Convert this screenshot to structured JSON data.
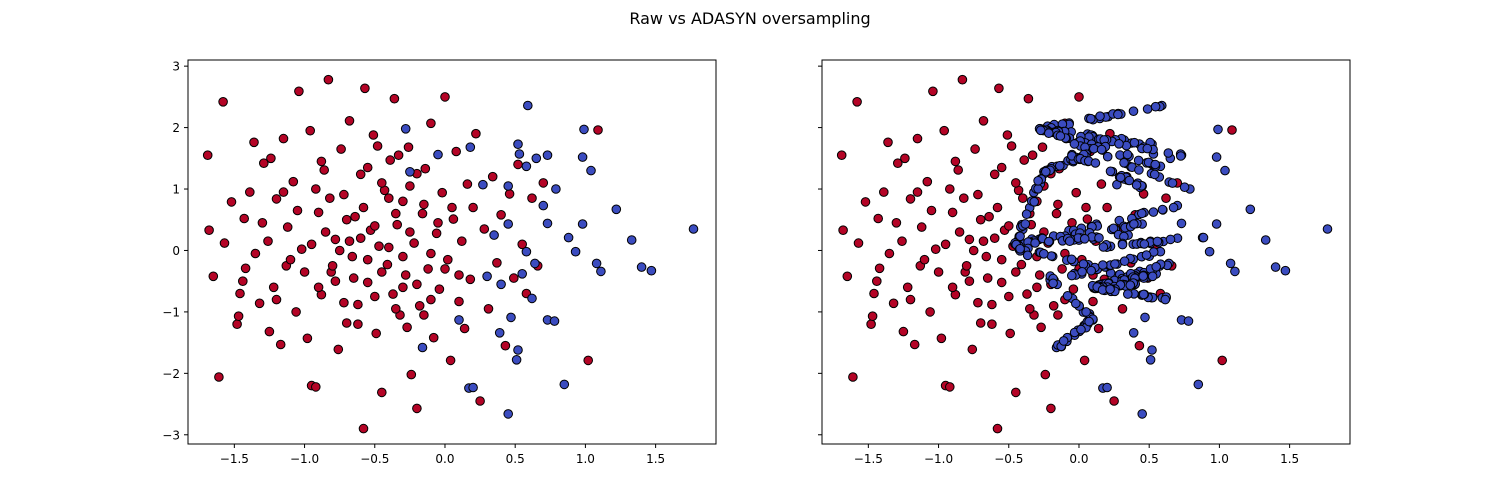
{
  "figure": {
    "title": "Raw vs ADASYN oversampling"
  },
  "colors": {
    "majority_class": "#b40426",
    "minority_class": "#3b4cc0",
    "marker_edge": "#000000",
    "background": "#ffffff"
  },
  "chart_data": [
    {
      "type": "scatter",
      "title": "",
      "xlabel": "",
      "ylabel": "",
      "xlim": [
        -1.83,
        1.93
      ],
      "ylim": [
        -3.15,
        3.1
      ],
      "xticks": [
        -1.5,
        -1.0,
        -0.5,
        0.0,
        0.5,
        1.0,
        1.5
      ],
      "xtick_labels": [
        "−1.5",
        "−1.0",
        "−0.5",
        "0.0",
        "0.5",
        "1.0",
        "1.5"
      ],
      "yticks": [
        -3,
        -2,
        -1,
        0,
        1,
        2,
        3
      ],
      "ytick_labels": [
        "−3",
        "−2",
        "−1",
        "0",
        "1",
        "2",
        "3"
      ],
      "grid": false,
      "legend": "none",
      "series": [
        {
          "color": "#b40426",
          "points": [
            [
              -1.69,
              1.55
            ],
            [
              -1.58,
              2.42
            ],
            [
              -1.61,
              -2.06
            ],
            [
              -1.65,
              -0.42
            ],
            [
              -1.68,
              0.33
            ],
            [
              -1.57,
              0.12
            ],
            [
              -1.52,
              0.79
            ],
            [
              -1.48,
              -1.2
            ],
            [
              -1.47,
              -1.07
            ],
            [
              -1.46,
              -0.7
            ],
            [
              -1.44,
              -0.5
            ],
            [
              -1.43,
              0.52
            ],
            [
              -1.42,
              -0.29
            ],
            [
              -1.39,
              0.95
            ],
            [
              -1.36,
              1.76
            ],
            [
              -1.35,
              -0.05
            ],
            [
              -1.32,
              -0.86
            ],
            [
              -1.3,
              0.45
            ],
            [
              -1.29,
              1.42
            ],
            [
              -1.26,
              0.15
            ],
            [
              -1.25,
              -1.32
            ],
            [
              -1.24,
              1.5
            ],
            [
              -1.22,
              -0.6
            ],
            [
              -1.2,
              0.84
            ],
            [
              -1.17,
              -1.53
            ],
            [
              -1.15,
              1.82
            ],
            [
              -1.13,
              -0.25
            ],
            [
              -1.12,
              0.38
            ],
            [
              -1.08,
              1.12
            ],
            [
              -1.06,
              -1.0
            ],
            [
              -1.04,
              2.59
            ],
            [
              -1.02,
              0.02
            ],
            [
              -0.98,
              -1.43
            ],
            [
              -0.96,
              1.95
            ],
            [
              -0.95,
              -2.2
            ],
            [
              -0.92,
              -2.22
            ],
            [
              -0.9,
              0.62
            ],
            [
              -0.88,
              -0.72
            ],
            [
              -0.86,
              1.31
            ],
            [
              -0.83,
              2.78
            ],
            [
              -0.81,
              -0.35
            ],
            [
              -0.78,
              0.18
            ],
            [
              -0.76,
              -1.61
            ],
            [
              -0.74,
              1.65
            ],
            [
              -0.72,
              0.91
            ],
            [
              -0.7,
              -1.18
            ],
            [
              -0.68,
              2.11
            ],
            [
              -0.66,
              -0.1
            ],
            [
              -0.64,
              0.55
            ],
            [
              -0.62,
              -0.88
            ],
            [
              -0.6,
              1.24
            ],
            [
              -0.58,
              -2.9
            ],
            [
              -0.57,
              2.64
            ],
            [
              -0.55,
              -0.52
            ],
            [
              -0.53,
              0.33
            ],
            [
              -0.51,
              1.88
            ],
            [
              -0.49,
              -1.35
            ],
            [
              -0.47,
              0.07
            ],
            [
              -0.45,
              -2.31
            ],
            [
              -0.43,
              0.98
            ],
            [
              -0.41,
              -0.23
            ],
            [
              -0.39,
              1.47
            ],
            [
              -0.37,
              -0.71
            ],
            [
              -0.36,
              2.47
            ],
            [
              -0.34,
              0.42
            ],
            [
              -0.32,
              -1.05
            ],
            [
              -0.3,
              0.8
            ],
            [
              -0.28,
              -0.4
            ],
            [
              -0.26,
              1.68
            ],
            [
              -0.24,
              -2.02
            ],
            [
              -0.22,
              0.12
            ],
            [
              -0.2,
              -2.57
            ],
            [
              -0.18,
              -0.9
            ],
            [
              -0.16,
              0.6
            ],
            [
              -0.14,
              1.33
            ],
            [
              -0.12,
              -0.3
            ],
            [
              -0.1,
              2.07
            ],
            [
              -0.08,
              -1.42
            ],
            [
              -0.06,
              0.28
            ],
            [
              -0.04,
              -0.63
            ],
            [
              -0.02,
              0.94
            ],
            [
              0.0,
              2.5
            ],
            [
              0.02,
              -0.15
            ],
            [
              0.04,
              -1.79
            ],
            [
              0.06,
              0.51
            ],
            [
              0.08,
              1.61
            ],
            [
              0.1,
              -0.83
            ],
            [
              0.12,
              0.15
            ],
            [
              0.14,
              -1.27
            ],
            [
              0.16,
              1.08
            ],
            [
              0.18,
              -0.47
            ],
            [
              0.2,
              0.7
            ],
            [
              0.22,
              1.9
            ],
            [
              0.25,
              -2.45
            ],
            [
              0.28,
              0.35
            ],
            [
              0.31,
              -0.95
            ],
            [
              0.34,
              1.2
            ],
            [
              0.37,
              -0.2
            ],
            [
              0.4,
              0.58
            ],
            [
              0.43,
              -1.55
            ],
            [
              0.46,
              0.92
            ],
            [
              0.49,
              -0.45
            ],
            [
              0.52,
              1.4
            ],
            [
              0.55,
              0.1
            ],
            [
              0.58,
              -0.7
            ],
            [
              0.62,
              0.85
            ],
            [
              0.66,
              -0.25
            ],
            [
              0.7,
              1.1
            ],
            [
              1.02,
              -1.79
            ],
            [
              1.09,
              1.96
            ],
            [
              -0.6,
              0.2
            ],
            [
              -0.55,
              -0.15
            ],
            [
              -0.5,
              0.4
            ],
            [
              -0.45,
              -0.35
            ],
            [
              -0.4,
              0.05
            ],
            [
              -0.35,
              0.6
            ],
            [
              -0.3,
              -0.1
            ],
            [
              -0.25,
              0.3
            ],
            [
              -0.2,
              -0.55
            ],
            [
              -0.15,
              0.75
            ],
            [
              -0.1,
              -0.05
            ],
            [
              -0.05,
              0.45
            ],
            [
              0.0,
              -0.3
            ],
            [
              -0.65,
              -0.45
            ],
            [
              -0.7,
              0.5
            ],
            [
              -0.75,
              0.0
            ],
            [
              -0.8,
              -0.25
            ],
            [
              -0.85,
              0.3
            ],
            [
              -0.9,
              -0.6
            ],
            [
              -0.95,
              0.1
            ],
            [
              -1.0,
              -0.35
            ],
            [
              -1.05,
              0.65
            ],
            [
              -1.1,
              -0.15
            ],
            [
              -0.45,
              1.1
            ],
            [
              -0.35,
              -0.95
            ],
            [
              -0.25,
              1.05
            ],
            [
              -0.15,
              -1.05
            ],
            [
              -0.55,
              1.35
            ],
            [
              -0.62,
              -1.2
            ],
            [
              -0.72,
              -0.85
            ],
            [
              -0.82,
              0.85
            ],
            [
              -0.92,
              1.0
            ],
            [
              -0.5,
              -0.75
            ],
            [
              -0.4,
              0.85
            ],
            [
              -0.3,
              -0.6
            ],
            [
              -0.2,
              1.25
            ],
            [
              -0.1,
              -0.8
            ],
            [
              0.05,
              0.7
            ],
            [
              0.1,
              -0.4
            ],
            [
              -0.58,
              0.7
            ],
            [
              -0.68,
              0.15
            ],
            [
              -0.78,
              -0.5
            ],
            [
              -0.88,
              1.45
            ],
            [
              -1.15,
              0.95
            ],
            [
              -1.2,
              -0.8
            ],
            [
              -0.33,
              1.55
            ],
            [
              -0.27,
              -1.25
            ],
            [
              -0.48,
              1.7
            ]
          ]
        },
        {
          "color": "#3b4cc0",
          "points": [
            [
              0.59,
              2.36
            ],
            [
              0.99,
              1.97
            ],
            [
              0.98,
              1.52
            ],
            [
              1.04,
              1.3
            ],
            [
              0.52,
              1.73
            ],
            [
              0.73,
              1.55
            ],
            [
              0.58,
              1.37
            ],
            [
              0.79,
              1.0
            ],
            [
              0.7,
              0.73
            ],
            [
              1.22,
              0.67
            ],
            [
              0.98,
              0.43
            ],
            [
              0.73,
              0.44
            ],
            [
              0.45,
              0.43
            ],
            [
              0.88,
              0.21
            ],
            [
              1.33,
              0.17
            ],
            [
              1.77,
              0.35
            ],
            [
              0.93,
              -0.02
            ],
            [
              1.08,
              -0.21
            ],
            [
              1.11,
              -0.34
            ],
            [
              1.4,
              -0.27
            ],
            [
              1.47,
              -0.33
            ],
            [
              0.64,
              -0.21
            ],
            [
              0.55,
              -0.38
            ],
            [
              0.4,
              -0.55
            ],
            [
              0.62,
              -0.78
            ],
            [
              0.73,
              -1.13
            ],
            [
              0.78,
              -1.15
            ],
            [
              0.85,
              -2.18
            ],
            [
              0.45,
              -2.66
            ],
            [
              0.17,
              -2.24
            ],
            [
              0.2,
              -2.23
            ],
            [
              0.51,
              -1.78
            ],
            [
              0.52,
              -1.62
            ],
            [
              0.58,
              -0.02
            ],
            [
              0.47,
              -1.09
            ],
            [
              0.35,
              0.25
            ],
            [
              0.3,
              -0.42
            ],
            [
              0.27,
              1.07
            ],
            [
              0.45,
              1.05
            ],
            [
              -0.28,
              1.98
            ],
            [
              -0.25,
              1.28
            ],
            [
              -0.05,
              1.56
            ],
            [
              0.1,
              -1.13
            ],
            [
              -0.16,
              -1.58
            ],
            [
              0.39,
              -1.34
            ],
            [
              0.18,
              1.68
            ],
            [
              0.53,
              1.57
            ],
            [
              0.65,
              1.5
            ]
          ]
        }
      ]
    },
    {
      "type": "scatter",
      "title": "",
      "xlabel": "",
      "ylabel": "",
      "xlim": [
        -1.83,
        1.93
      ],
      "ylim": [
        -3.15,
        3.1
      ],
      "xticks": [
        -1.5,
        -1.0,
        -0.5,
        0.0,
        0.5,
        1.0,
        1.5
      ],
      "xtick_labels": [
        "−1.5",
        "−1.0",
        "−0.5",
        "0.0",
        "0.5",
        "1.0",
        "1.5"
      ],
      "yticks": [
        -3,
        -2,
        -1,
        0,
        1,
        2,
        3
      ],
      "ytick_labels": [],
      "shared_y": true,
      "grid": false,
      "legend": "none",
      "series": [
        {
          "color": "#b40426",
          "same_as_raw": true,
          "points": "raw.majority"
        },
        {
          "color": "#3b4cc0",
          "points": "raw.minority",
          "synthetic_segments": [
            [
              [
                -0.28,
                1.98
              ],
              [
                0.59,
                2.36
              ]
            ],
            [
              [
                -0.28,
                1.98
              ],
              [
                0.52,
                1.73
              ]
            ],
            [
              [
                -0.28,
                1.98
              ],
              [
                0.73,
                1.55
              ]
            ],
            [
              [
                -0.28,
                1.98
              ],
              [
                0.58,
                1.37
              ]
            ],
            [
              [
                -0.28,
                1.98
              ],
              [
                0.79,
                1.0
              ]
            ],
            [
              [
                -0.25,
                1.28
              ],
              [
                0.18,
                1.68
              ]
            ],
            [
              [
                -0.25,
                1.28
              ],
              [
                -0.45,
                0.1
              ]
            ],
            [
              [
                -0.05,
                1.56
              ],
              [
                0.45,
                1.05
              ]
            ],
            [
              [
                -0.45,
                0.1
              ],
              [
                0.7,
                0.73
              ]
            ],
            [
              [
                -0.45,
                0.1
              ],
              [
                0.45,
                0.43
              ]
            ],
            [
              [
                -0.45,
                0.1
              ],
              [
                0.35,
                0.25
              ]
            ],
            [
              [
                -0.45,
                0.1
              ],
              [
                0.3,
                -0.42
              ]
            ],
            [
              [
                -0.45,
                0.1
              ],
              [
                0.1,
                -1.13
              ]
            ],
            [
              [
                0.1,
                -1.13
              ],
              [
                -0.16,
                -1.58
              ]
            ],
            [
              [
                0.1,
                -0.6
              ],
              [
                0.64,
                -0.21
              ]
            ],
            [
              [
                0.1,
                -0.6
              ],
              [
                0.55,
                -0.38
              ]
            ],
            [
              [
                0.1,
                -0.6
              ],
              [
                0.4,
                -0.55
              ]
            ],
            [
              [
                0.1,
                -0.6
              ],
              [
                0.62,
                -0.78
              ]
            ],
            [
              [
                -0.05,
                -0.4
              ],
              [
                0.58,
                -0.02
              ]
            ],
            [
              [
                0.1,
                0.05
              ],
              [
                0.88,
                0.21
              ]
            ]
          ]
        }
      ]
    }
  ]
}
